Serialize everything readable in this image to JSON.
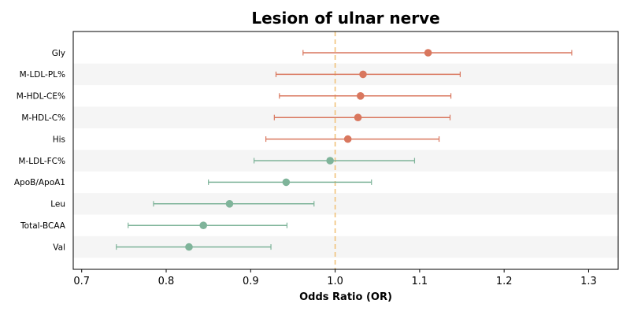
{
  "chart_data": {
    "type": "forest",
    "title": "Lesion of ulnar nerve",
    "xlabel": "Odds Ratio (OR)",
    "xlim": [
      0.69,
      1.335
    ],
    "xticks": [
      0.7,
      0.8,
      0.9,
      1.0,
      1.1,
      1.2,
      1.3
    ],
    "xtick_labels": [
      "0.7",
      "0.8",
      "0.9",
      "1.0",
      "1.1",
      "1.2",
      "1.3"
    ],
    "reference_line": 1.0,
    "colors": {
      "positive": "#d9775e",
      "negative": "#7fb49a",
      "reference": "#f0c27a",
      "band": "#f5f5f5"
    },
    "rows": [
      {
        "label": "Gly",
        "or": 1.11,
        "lower": 0.962,
        "upper": 1.28,
        "group": "positive"
      },
      {
        "label": "M-LDL-PL%",
        "or": 1.033,
        "lower": 0.93,
        "upper": 1.148,
        "group": "positive"
      },
      {
        "label": "M-HDL-CE%",
        "or": 1.03,
        "lower": 0.934,
        "upper": 1.137,
        "group": "positive"
      },
      {
        "label": "M-HDL-C%",
        "or": 1.027,
        "lower": 0.928,
        "upper": 1.136,
        "group": "positive"
      },
      {
        "label": "His",
        "or": 1.015,
        "lower": 0.918,
        "upper": 1.123,
        "group": "positive"
      },
      {
        "label": "M-LDL-FC%",
        "or": 0.994,
        "lower": 0.904,
        "upper": 1.094,
        "group": "negative"
      },
      {
        "label": "ApoB/ApoA1",
        "or": 0.942,
        "lower": 0.85,
        "upper": 1.043,
        "group": "negative"
      },
      {
        "label": "Leu",
        "or": 0.875,
        "lower": 0.785,
        "upper": 0.975,
        "group": "negative"
      },
      {
        "label": "Total-BCAA",
        "or": 0.844,
        "lower": 0.755,
        "upper": 0.943,
        "group": "negative"
      },
      {
        "label": "Val",
        "or": 0.827,
        "lower": 0.741,
        "upper": 0.924,
        "group": "negative"
      }
    ]
  }
}
